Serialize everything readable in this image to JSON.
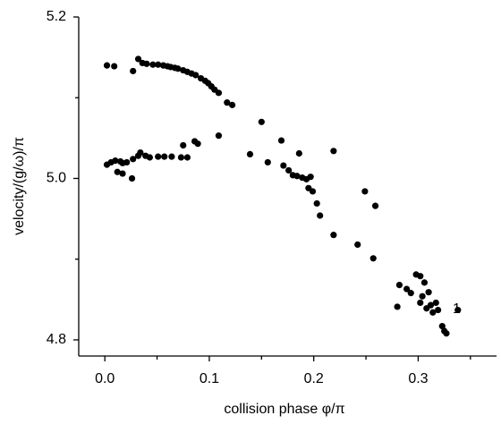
{
  "chart_data": {
    "type": "scatter",
    "x_label": "collision phase  φ/π",
    "y_label": "velocity/(g/ω)/π",
    "annotation": "1",
    "color": "#000000",
    "xlim": [
      -0.025,
      0.375
    ],
    "ylim": [
      4.78,
      5.2
    ],
    "xticks": [
      {
        "value": 0,
        "label": "0.0"
      },
      0.1,
      0.2,
      0.3
    ],
    "yticks": [
      4.8,
      {
        "value": 5,
        "label": "5.0"
      },
      5.2
    ],
    "xminor": [
      0.05,
      0.15,
      0.25,
      0.35
    ],
    "yminor": [
      4.9,
      5.1
    ],
    "x": [
      0.002,
      0.009,
      0.027,
      0.032,
      0.036,
      0.04,
      0.046,
      0.051,
      0.056,
      0.06,
      0.063,
      0.067,
      0.07,
      0.075,
      0.079,
      0.083,
      0.087,
      0.092,
      0.096,
      0.099,
      0.102,
      0.105,
      0.109,
      0.117,
      0.122,
      0.002,
      0.006,
      0.01,
      0.015,
      0.017,
      0.012,
      0.017,
      0.026,
      0.021,
      0.027,
      0.032,
      0.034,
      0.039,
      0.043,
      0.051,
      0.057,
      0.064,
      0.073,
      0.079,
      0.086,
      0.089,
      0.075,
      0.109,
      0.139,
      0.15,
      0.156,
      0.169,
      0.171,
      0.176,
      0.18,
      0.184,
      0.189,
      0.193,
      0.197,
      0.186,
      0.195,
      0.199,
      0.203,
      0.206,
      0.219,
      0.219,
      0.242,
      0.249,
      0.257,
      0.259,
      0.28,
      0.282,
      0.289,
      0.293,
      0.298,
      0.302,
      0.306,
      0.31,
      0.308,
      0.312,
      0.314,
      0.317,
      0.319,
      0.323,
      0.325,
      0.327,
      0.302,
      0.304,
      0.338
    ],
    "values": [
      5.14,
      5.139,
      5.133,
      5.148,
      5.143,
      5.142,
      5.141,
      5.141,
      5.14,
      5.139,
      5.138,
      5.137,
      5.136,
      5.134,
      5.132,
      5.13,
      5.128,
      5.124,
      5.121,
      5.118,
      5.114,
      5.11,
      5.106,
      5.094,
      5.091,
      5.017,
      5.02,
      5.022,
      5.021,
      5.019,
      5.008,
      5.006,
      5.0,
      5.02,
      5.024,
      5.028,
      5.032,
      5.028,
      5.026,
      5.027,
      5.027,
      5.027,
      5.026,
      5.026,
      5.046,
      5.043,
      5.041,
      5.053,
      5.03,
      5.07,
      5.02,
      5.047,
      5.016,
      5.01,
      5.004,
      5.003,
      5.001,
      4.999,
      5.002,
      5.031,
      4.988,
      4.984,
      4.969,
      4.954,
      5.034,
      4.93,
      4.918,
      4.984,
      4.901,
      4.966,
      4.841,
      4.868,
      4.863,
      4.858,
      4.881,
      4.879,
      4.871,
      4.859,
      4.839,
      4.843,
      4.834,
      4.846,
      4.837,
      4.817,
      4.811,
      4.808,
      4.846,
      4.854,
      4.837
    ]
  }
}
